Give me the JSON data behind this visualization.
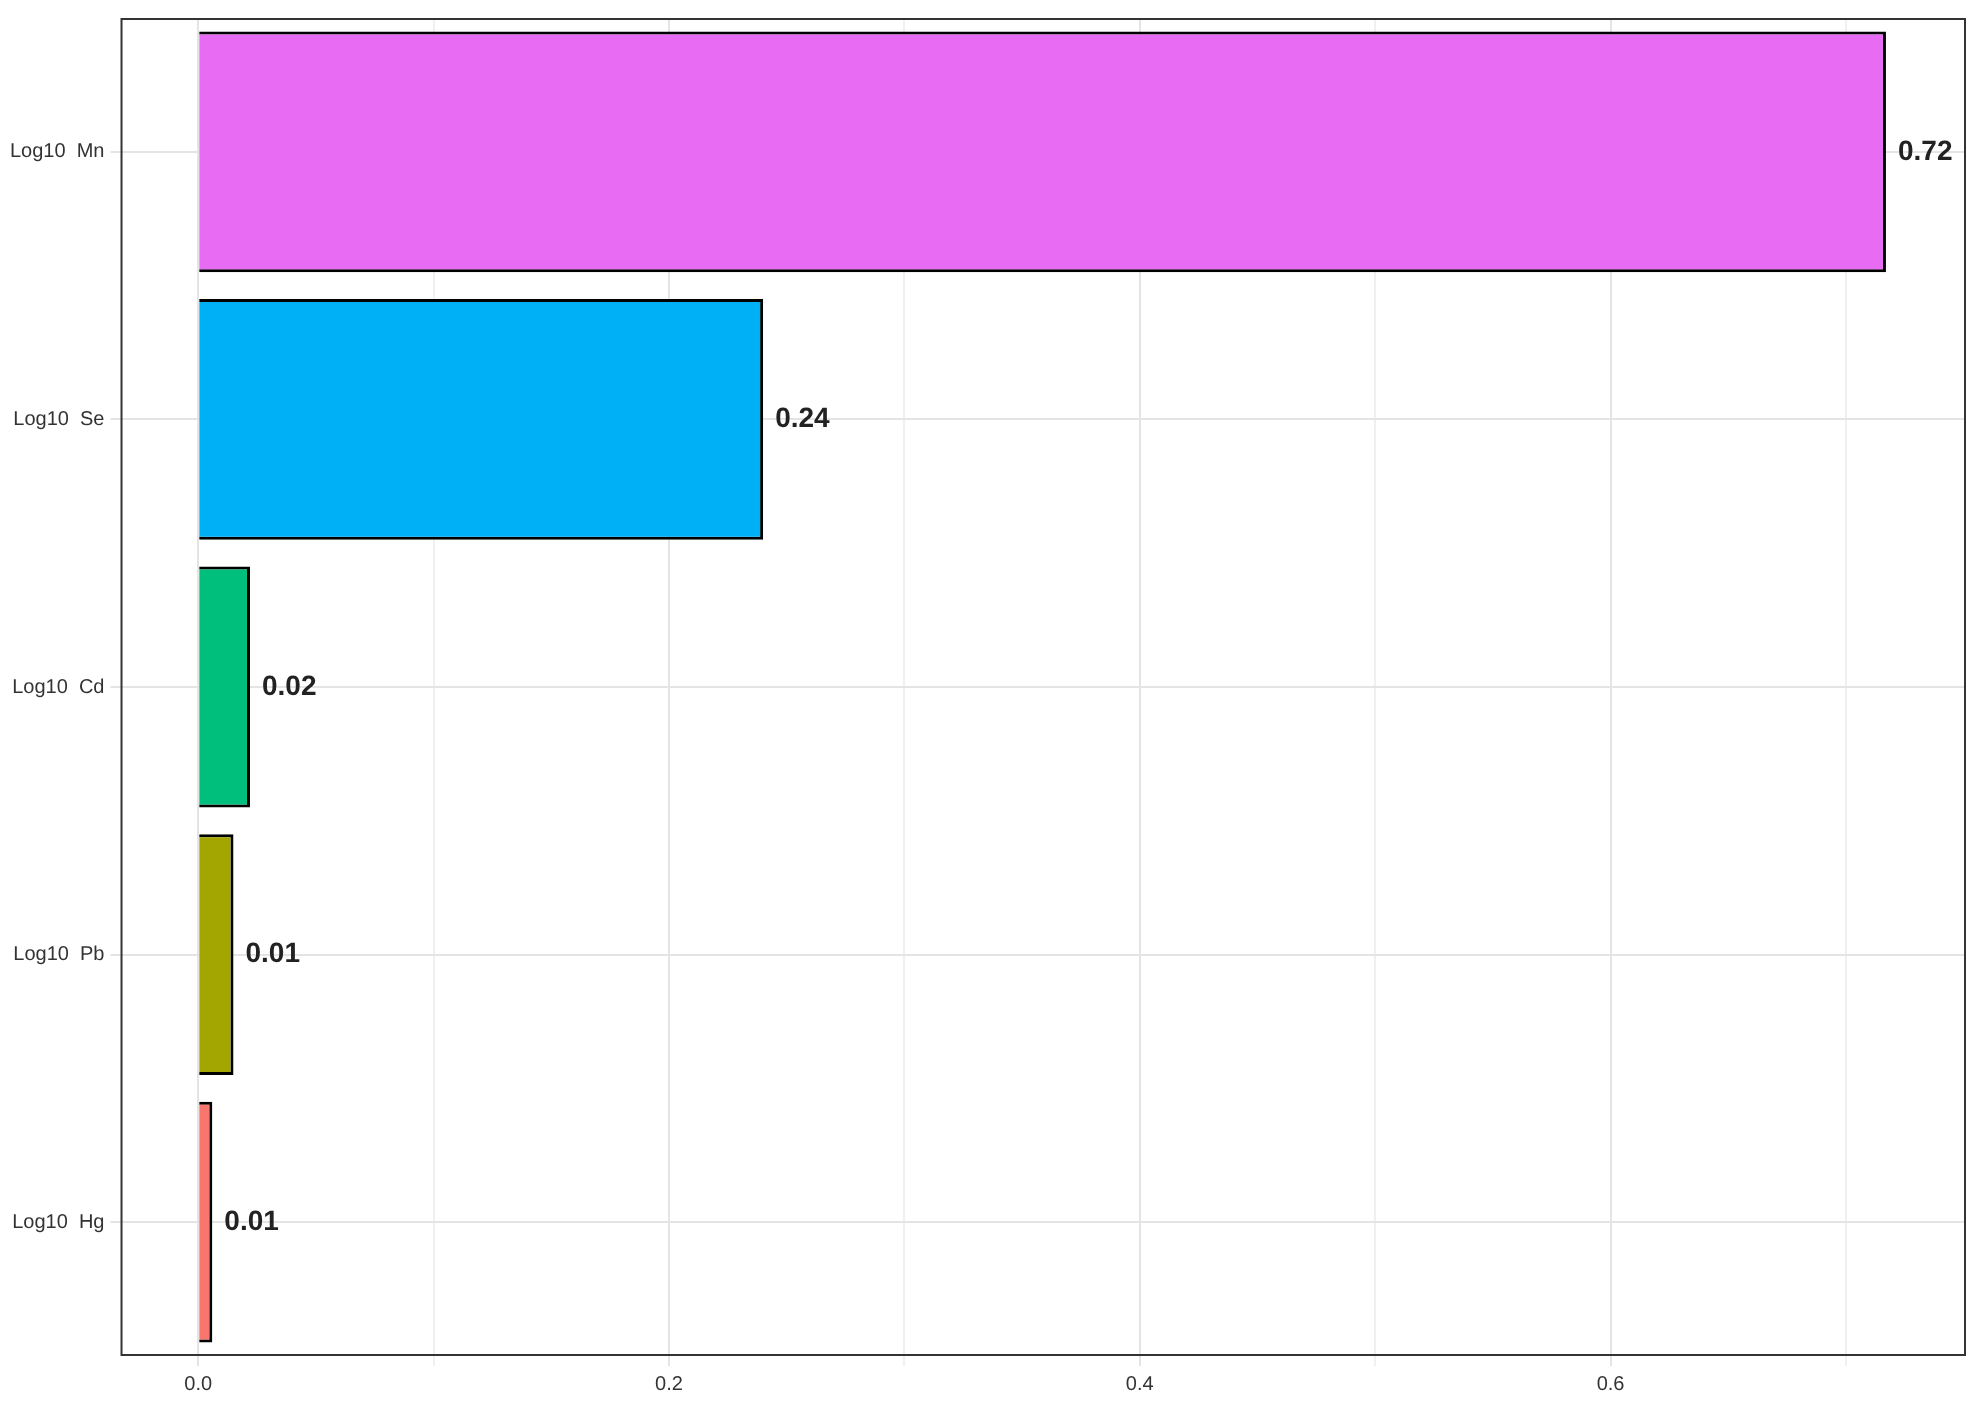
{
  "chart_data": {
    "type": "bar",
    "orientation": "horizontal",
    "categories": [
      "Log10  Mn",
      "Log10  Se",
      "Log10  Cd",
      "Log10  Pb",
      "Log10  Hg"
    ],
    "values": [
      0.717,
      0.24,
      0.022,
      0.015,
      0.006
    ],
    "colors": [
      "#e76bf3",
      "#00b0f6",
      "#00bf7d",
      "#a3a500",
      "#f8766d"
    ],
    "value_labels": [
      "0.72",
      "0.24",
      "0.02",
      "0.01",
      "0.01"
    ],
    "xlim": [
      -0.033,
      0.751
    ],
    "xticks": [
      {
        "value": 0,
        "label": "0.0"
      },
      {
        "value": 0.1,
        "label": null
      },
      {
        "value": 0.2,
        "label": "0.2"
      },
      {
        "value": 0.3,
        "label": null
      },
      {
        "value": 0.4,
        "label": "0.4"
      },
      {
        "value": 0.5,
        "label": null
      },
      {
        "value": 0.6,
        "label": "0.6"
      },
      {
        "value": 0.7,
        "label": null
      }
    ],
    "grid": true
  }
}
